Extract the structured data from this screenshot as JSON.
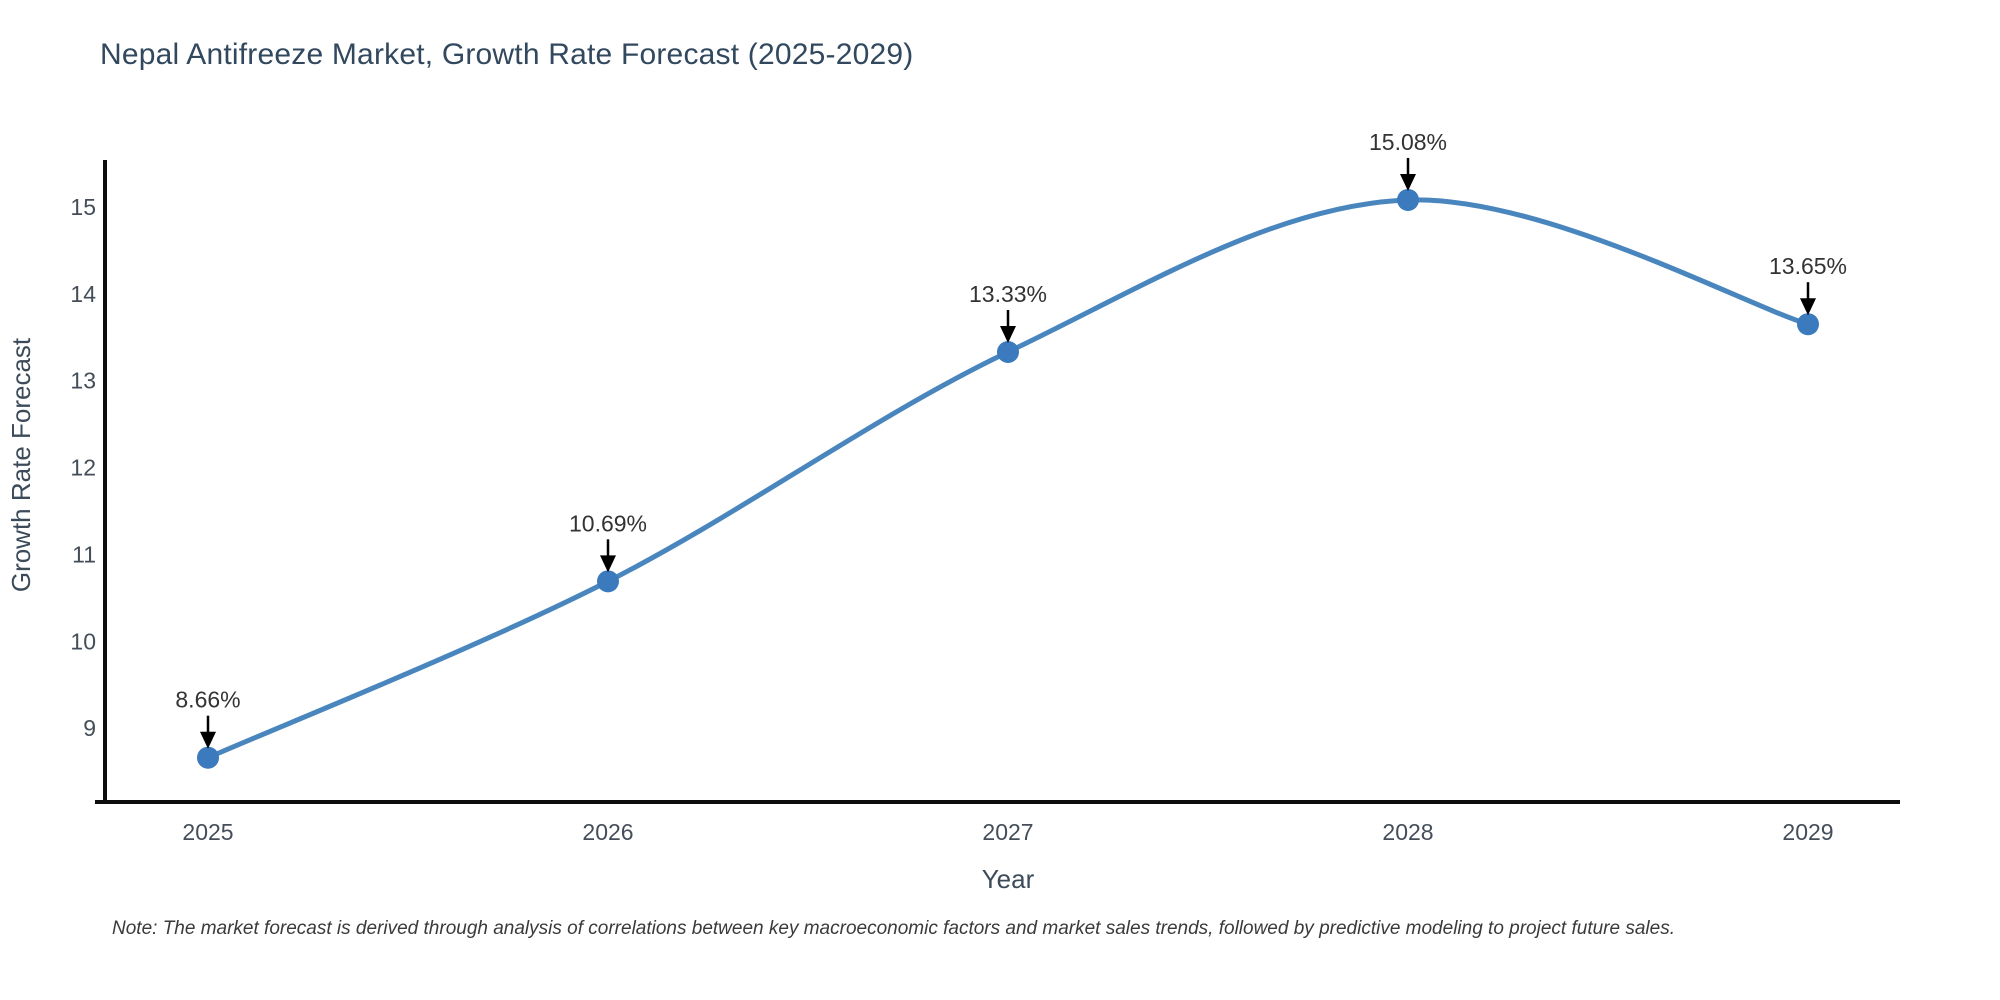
{
  "chart_data": {
    "type": "line",
    "title": "Nepal Antifreeze Market, Growth Rate Forecast (2025-2029)",
    "note": "Note: The market forecast is derived through analysis of correlations between key macroeconomic factors and market sales trends, followed by predictive modeling to project future sales.",
    "xlabel": "Year",
    "ylabel": "Growth Rate Forecast",
    "x": [
      2025,
      2026,
      2027,
      2028,
      2029
    ],
    "values": [
      8.66,
      10.69,
      13.33,
      15.08,
      13.65
    ],
    "point_labels": [
      "8.66%",
      "10.69%",
      "13.33%",
      "15.08%",
      "13.65%"
    ],
    "yticks": [
      9,
      10,
      11,
      12,
      13,
      14,
      15
    ],
    "xlim": [
      2024.7425,
      2029.23
    ],
    "ylim": [
      8.15,
      15.54
    ],
    "grid": false,
    "legend": "none",
    "line_color": "#4a86be",
    "marker_color": "#3a7abd",
    "spine_color": "#0d0d0d",
    "tick_color": "#444e59",
    "axis_label_color": "#3c4b59",
    "annotation_text_color": "#333333",
    "annotation_arrow_color": "#000000"
  }
}
